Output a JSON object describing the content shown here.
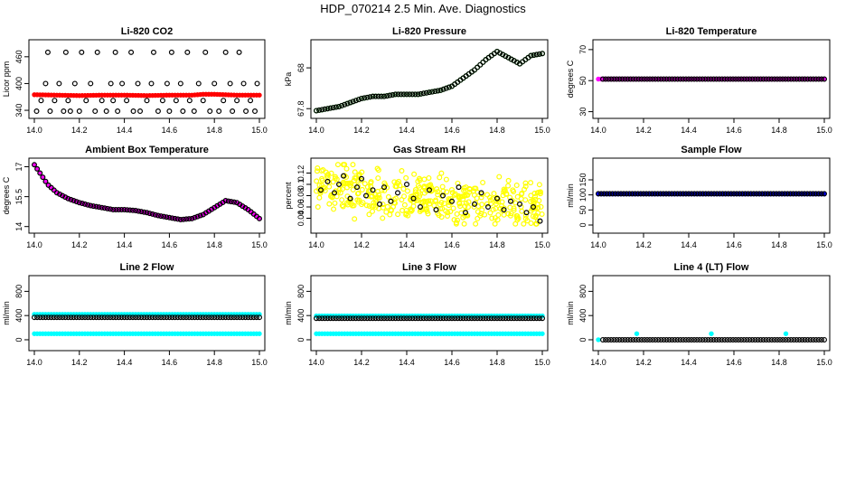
{
  "figure_title": "HDP_070214  2.5 Min. Ave. Diagnostics",
  "chart_data": [
    {
      "type": "scatter",
      "title": "Li-820 CO2",
      "xlabel": "",
      "ylabel": "Licor ppm",
      "xlim": [
        14.0,
        15.0
      ],
      "ylim": [
        330,
        490
      ],
      "xticks": [
        14.0,
        14.2,
        14.4,
        14.6,
        14.8,
        15.0
      ],
      "yticks": [
        340,
        400,
        460
      ],
      "series": [
        {
          "name": "raw",
          "color": "#000000",
          "style": "open",
          "kind": "scatter",
          "x": [
            14.01,
            14.07,
            14.13,
            14.16,
            14.2,
            14.27,
            14.32,
            14.37,
            14.44,
            14.47,
            14.55,
            14.6,
            14.66,
            14.71,
            14.78,
            14.82,
            14.88,
            14.94,
            14.98,
            14.03,
            14.09,
            14.15,
            14.23,
            14.3,
            14.35,
            14.41,
            14.5,
            14.57,
            14.63,
            14.69,
            14.75,
            14.84,
            14.9,
            14.96,
            14.05,
            14.11,
            14.18,
            14.25,
            14.34,
            14.39,
            14.46,
            14.52,
            14.59,
            14.65,
            14.73,
            14.8,
            14.87,
            14.93,
            14.99,
            14.06,
            14.14,
            14.21,
            14.28,
            14.36,
            14.43,
            14.53,
            14.61,
            14.68,
            14.76,
            14.85,
            14.91
          ],
          "y": [
            338,
            338,
            338,
            338,
            338,
            338,
            338,
            338,
            338,
            338,
            338,
            338,
            338,
            338,
            338,
            338,
            338,
            338,
            338,
            362,
            362,
            362,
            362,
            362,
            362,
            362,
            362,
            362,
            362,
            362,
            362,
            362,
            362,
            362,
            400,
            400,
            400,
            400,
            400,
            400,
            400,
            400,
            400,
            400,
            400,
            400,
            400,
            400,
            400,
            470,
            470,
            470,
            470,
            470,
            470,
            470,
            470,
            470,
            470,
            470,
            470
          ]
        },
        {
          "name": "average",
          "color": "#ff0000",
          "style": "filled",
          "kind": "curve",
          "x": [
            14.0,
            14.1,
            14.2,
            14.3,
            14.4,
            14.5,
            14.6,
            14.7,
            14.75,
            14.8,
            14.9,
            15.0
          ],
          "y": [
            375,
            374,
            373,
            374,
            374,
            373,
            374,
            374,
            376,
            376,
            374,
            374
          ]
        }
      ]
    },
    {
      "type": "scatter",
      "title": "Li-820 Pressure",
      "xlabel": "",
      "ylabel": "kPa",
      "xlim": [
        14.0,
        15.0
      ],
      "ylim": [
        67.77,
        68.12
      ],
      "xticks": [
        14.0,
        14.2,
        14.4,
        14.6,
        14.8,
        15.0
      ],
      "yticks": [
        67.8,
        68.0
      ],
      "series": [
        {
          "name": "raw",
          "color": "#00cc00",
          "style": "open",
          "kind": "curve",
          "x": [
            14.0,
            14.05,
            14.1,
            14.15,
            14.2,
            14.25,
            14.3,
            14.35,
            14.4,
            14.45,
            14.5,
            14.55,
            14.6,
            14.65,
            14.7,
            14.75,
            14.8,
            14.85,
            14.9,
            14.95,
            15.0
          ],
          "y": [
            67.79,
            67.8,
            67.81,
            67.83,
            67.85,
            67.86,
            67.86,
            67.87,
            67.87,
            67.87,
            67.88,
            67.89,
            67.91,
            67.95,
            67.99,
            68.04,
            68.08,
            68.05,
            68.02,
            68.06,
            68.07
          ]
        },
        {
          "name": "average",
          "color": "#000000",
          "style": "open",
          "kind": "curve",
          "x": [
            14.0,
            14.05,
            14.1,
            14.15,
            14.2,
            14.25,
            14.3,
            14.35,
            14.4,
            14.45,
            14.5,
            14.55,
            14.6,
            14.65,
            14.7,
            14.75,
            14.8,
            14.85,
            14.9,
            14.95,
            15.0
          ],
          "y": [
            67.79,
            67.8,
            67.81,
            67.83,
            67.85,
            67.86,
            67.86,
            67.87,
            67.87,
            67.87,
            67.88,
            67.89,
            67.91,
            67.95,
            67.99,
            68.04,
            68.08,
            68.05,
            68.02,
            68.06,
            68.07
          ]
        }
      ]
    },
    {
      "type": "scatter",
      "title": "Li-820 Temperature",
      "xlabel": "",
      "ylabel": "degrees C",
      "xlim": [
        14.0,
        15.0
      ],
      "ylim": [
        28,
        74
      ],
      "xticks": [
        14.0,
        14.2,
        14.4,
        14.6,
        14.8,
        15.0
      ],
      "yticks": [
        30,
        50,
        70
      ],
      "series": [
        {
          "name": "raw",
          "color": "#ff00ff",
          "style": "filled",
          "kind": "curve",
          "x": [
            14.0,
            15.0
          ],
          "y": [
            51,
            51
          ]
        },
        {
          "name": "average",
          "color": "#000000",
          "style": "open",
          "kind": "curve",
          "x": [
            14.02,
            15.0
          ],
          "y": [
            51,
            51
          ]
        }
      ]
    },
    {
      "type": "scatter",
      "title": "Ambient Box Temperature",
      "xlabel": "",
      "ylabel": "degrees C",
      "xlim": [
        14.0,
        15.0
      ],
      "ylim": [
        13.85,
        17.25
      ],
      "xticks": [
        14.0,
        14.2,
        14.4,
        14.6,
        14.8,
        15.0
      ],
      "yticks": [
        14.0,
        15.5,
        17.0
      ],
      "series": [
        {
          "name": "raw",
          "color": "#ff00ff",
          "style": "filled",
          "kind": "curve",
          "x": [
            14.0,
            14.03,
            14.06,
            14.1,
            14.15,
            14.2,
            14.25,
            14.3,
            14.35,
            14.4,
            14.45,
            14.5,
            14.55,
            14.6,
            14.65,
            14.7,
            14.75,
            14.8,
            14.85,
            14.9,
            14.95,
            15.0
          ],
          "y": [
            17.1,
            16.6,
            16.1,
            15.7,
            15.4,
            15.2,
            15.05,
            14.95,
            14.85,
            14.85,
            14.8,
            14.7,
            14.55,
            14.45,
            14.35,
            14.4,
            14.6,
            14.95,
            15.3,
            15.2,
            14.85,
            14.4
          ]
        },
        {
          "name": "average",
          "color": "#000000",
          "style": "open",
          "kind": "curve",
          "x": [
            14.0,
            14.03,
            14.06,
            14.1,
            14.15,
            14.2,
            14.25,
            14.3,
            14.35,
            14.4,
            14.45,
            14.5,
            14.55,
            14.6,
            14.65,
            14.7,
            14.75,
            14.8,
            14.85,
            14.9,
            14.95,
            15.0
          ],
          "y": [
            17.1,
            16.6,
            16.1,
            15.7,
            15.4,
            15.2,
            15.05,
            14.95,
            14.85,
            14.85,
            14.8,
            14.7,
            14.55,
            14.45,
            14.35,
            14.4,
            14.6,
            14.95,
            15.3,
            15.2,
            14.85,
            14.4
          ]
        }
      ]
    },
    {
      "type": "scatter",
      "title": "Gas Stream RH",
      "xlabel": "",
      "ylabel": "percent",
      "xlim": [
        14.0,
        15.0
      ],
      "ylim": [
        0.02,
        0.14
      ],
      "xticks": [
        14.0,
        14.2,
        14.4,
        14.6,
        14.8,
        15.0
      ],
      "yticks": [
        0.04,
        0.06,
        0.08,
        0.1,
        0.12
      ],
      "series": [
        {
          "name": "raw",
          "color": "#ffff00",
          "style": "open",
          "kind": "cloud",
          "x": [
            14.0,
            15.0
          ],
          "y": [
            0.03,
            0.135
          ],
          "center": [
            0.11,
            0.085,
            0.075,
            0.07,
            0.065
          ]
        },
        {
          "name": "average",
          "color": "#000000",
          "style": "open",
          "kind": "scatter",
          "x": [
            14.02,
            14.05,
            14.08,
            14.1,
            14.12,
            14.15,
            14.18,
            14.2,
            14.22,
            14.25,
            14.28,
            14.3,
            14.33,
            14.36,
            14.4,
            14.43,
            14.46,
            14.5,
            14.53,
            14.56,
            14.6,
            14.63,
            14.66,
            14.7,
            14.73,
            14.76,
            14.8,
            14.83,
            14.86,
            14.9,
            14.93,
            14.96,
            14.99
          ],
          "y": [
            0.09,
            0.105,
            0.085,
            0.1,
            0.115,
            0.075,
            0.095,
            0.11,
            0.08,
            0.09,
            0.065,
            0.095,
            0.07,
            0.085,
            0.1,
            0.075,
            0.06,
            0.09,
            0.055,
            0.08,
            0.07,
            0.095,
            0.05,
            0.065,
            0.085,
            0.06,
            0.075,
            0.055,
            0.07,
            0.065,
            0.05,
            0.06,
            0.035
          ]
        }
      ]
    },
    {
      "type": "scatter",
      "title": "Sample Flow",
      "xlabel": "",
      "ylabel": "ml/min",
      "xlim": [
        14.0,
        15.0
      ],
      "ylim": [
        -15,
        210
      ],
      "xticks": [
        14.0,
        14.2,
        14.4,
        14.6,
        14.8,
        15.0
      ],
      "yticks": [
        0,
        50,
        100,
        150
      ],
      "series": [
        {
          "name": "raw",
          "color": "#0000ff",
          "style": "filled",
          "kind": "curve",
          "x": [
            14.0,
            15.0
          ],
          "y": [
            103,
            103
          ]
        },
        {
          "name": "average",
          "color": "#000000",
          "style": "open",
          "kind": "curve",
          "x": [
            14.0,
            15.0
          ],
          "y": [
            104,
            104
          ]
        }
      ]
    },
    {
      "type": "scatter",
      "title": "Line 2 Flow",
      "xlabel": "",
      "ylabel": "ml/min",
      "xlim": [
        14.0,
        15.0
      ],
      "ylim": [
        -120,
        1000
      ],
      "xticks": [
        14.0,
        14.2,
        14.4,
        14.6,
        14.8,
        15.0
      ],
      "yticks": [
        0,
        400,
        800
      ],
      "series": [
        {
          "name": "raw high",
          "color": "#00ffff",
          "style": "filled",
          "kind": "curve",
          "x": [
            14.0,
            15.0
          ],
          "y": [
            420,
            420
          ]
        },
        {
          "name": "raw low",
          "color": "#00ffff",
          "style": "filled",
          "kind": "curve",
          "x": [
            14.0,
            15.0
          ],
          "y": [
            100,
            100
          ]
        },
        {
          "name": "average",
          "color": "#000000",
          "style": "open",
          "kind": "curve",
          "x": [
            14.0,
            15.0
          ],
          "y": [
            370,
            370
          ]
        }
      ]
    },
    {
      "type": "scatter",
      "title": "Line 3 Flow",
      "xlabel": "",
      "ylabel": "ml/min",
      "xlim": [
        14.0,
        15.0
      ],
      "ylim": [
        -120,
        1000
      ],
      "xticks": [
        14.0,
        14.2,
        14.4,
        14.6,
        14.8,
        15.0
      ],
      "yticks": [
        0,
        400,
        800
      ],
      "series": [
        {
          "name": "raw high",
          "color": "#00ffff",
          "style": "filled",
          "kind": "curve",
          "x": [
            14.0,
            15.0
          ],
          "y": [
            395,
            395
          ]
        },
        {
          "name": "raw low",
          "color": "#00ffff",
          "style": "filled",
          "kind": "curve",
          "x": [
            14.0,
            15.0
          ],
          "y": [
            100,
            100
          ]
        },
        {
          "name": "average",
          "color": "#000000",
          "style": "open",
          "kind": "curve",
          "x": [
            14.0,
            15.0
          ],
          "y": [
            355,
            355
          ]
        }
      ]
    },
    {
      "type": "scatter",
      "title": "Line 4 (LT) Flow",
      "xlabel": "",
      "ylabel": "ml/min",
      "xlim": [
        14.0,
        15.0
      ],
      "ylim": [
        -120,
        1000
      ],
      "xticks": [
        14.0,
        14.2,
        14.4,
        14.6,
        14.8,
        15.0
      ],
      "yticks": [
        0,
        400,
        800
      ],
      "series": [
        {
          "name": "raw",
          "color": "#00ffff",
          "style": "filled",
          "kind": "scatter",
          "x": [
            14.0,
            14.17,
            14.5,
            14.83
          ],
          "y": [
            0,
            100,
            100,
            100
          ]
        },
        {
          "name": "average",
          "color": "#000000",
          "style": "open",
          "kind": "curve",
          "x": [
            14.02,
            15.0
          ],
          "y": [
            0,
            0
          ]
        }
      ]
    }
  ]
}
